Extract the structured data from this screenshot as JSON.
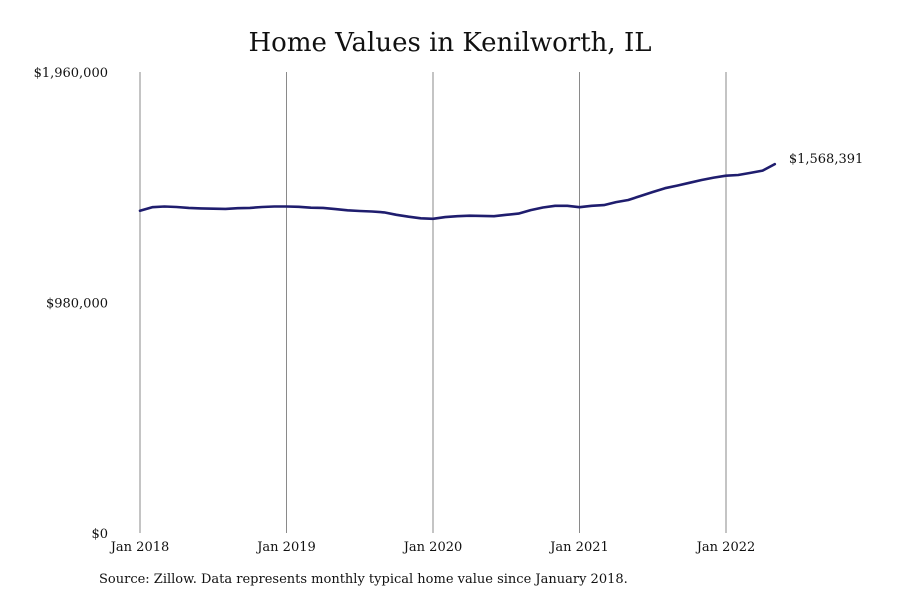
{
  "chart_data": {
    "type": "line",
    "title": "Home Values in Kenilworth, IL",
    "xlabel": "",
    "ylabel": "",
    "ylim": [
      0,
      1960000
    ],
    "yticks": [
      {
        "value": 0,
        "label": "$0"
      },
      {
        "value": 980000,
        "label": "$980,000"
      },
      {
        "value": 1960000,
        "label": "$1,960,000"
      }
    ],
    "xticks": [
      {
        "value": 0,
        "label": "Jan 2018"
      },
      {
        "value": 12,
        "label": "Jan 2019"
      },
      {
        "value": 24,
        "label": "Jan 2020"
      },
      {
        "value": 36,
        "label": "Jan 2021"
      },
      {
        "value": 48,
        "label": "Jan 2022"
      }
    ],
    "grid": "vertical lines at x ticks",
    "end_label": "$1,568,391",
    "series": [
      {
        "color": "#1f1d6e",
        "x": [
          0,
          1,
          2,
          3,
          4,
          5,
          6,
          7,
          8,
          9,
          10,
          11,
          12,
          13,
          14,
          15,
          16,
          17,
          18,
          19,
          20,
          21,
          22,
          23,
          24,
          25,
          26,
          27,
          28,
          29,
          30,
          31,
          32,
          33,
          34,
          35,
          36,
          37,
          38,
          39,
          40,
          41,
          42,
          43,
          44,
          45,
          46,
          47,
          48,
          49,
          50,
          51,
          52
        ],
        "values": [
          1370000,
          1385000,
          1388000,
          1386000,
          1382000,
          1380000,
          1379000,
          1378000,
          1381000,
          1382000,
          1386000,
          1388000,
          1388000,
          1387000,
          1383000,
          1382000,
          1377000,
          1372000,
          1369000,
          1367000,
          1363000,
          1353000,
          1345000,
          1338000,
          1336000,
          1343000,
          1347000,
          1349000,
          1348000,
          1347000,
          1353000,
          1358000,
          1373000,
          1384000,
          1391000,
          1391000,
          1385000,
          1391000,
          1394000,
          1407000,
          1416000,
          1433000,
          1450000,
          1466000,
          1477000,
          1489000,
          1501000,
          1511000,
          1519000,
          1522000,
          1531000,
          1541000,
          1568391
        ]
      }
    ]
  },
  "source_text": "Source: Zillow. Data represents monthly typical home value since January 2018."
}
